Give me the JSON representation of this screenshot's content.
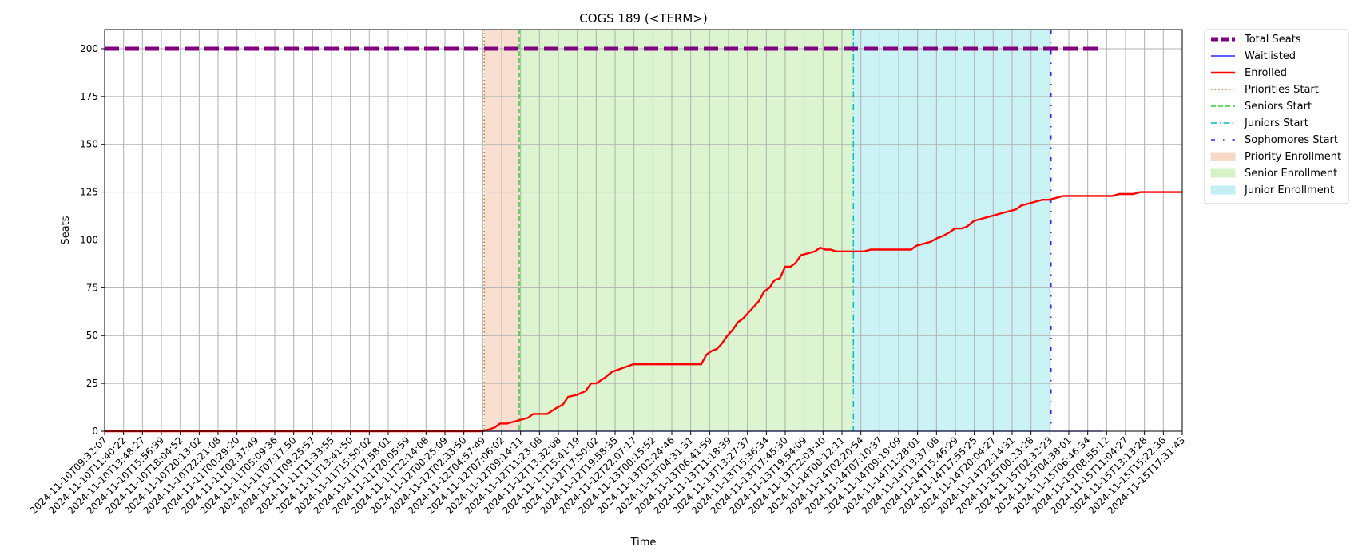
{
  "chart_data": {
    "type": "line",
    "title": "COGS 189 (<TERM>)",
    "xlabel": "Time",
    "ylabel": "Seats",
    "ylim": [
      0,
      210
    ],
    "yticks": [
      0,
      25,
      50,
      75,
      100,
      125,
      150,
      175,
      200
    ],
    "grid": true,
    "legend_position": "outside-top-right",
    "x_ticks": [
      "2024-11-10T09:32:07",
      "2024-11-10T11:40:22",
      "2024-11-10T13:48:27",
      "2024-11-10T15:56:39",
      "2024-11-10T18:04:52",
      "2024-11-10T20:13:02",
      "2024-11-10T22:21:08",
      "2024-11-11T00:29:20",
      "2024-11-11T02:37:49",
      "2024-11-11T05:09:36",
      "2024-11-11T07:17:50",
      "2024-11-11T09:25:57",
      "2024-11-11T11:33:55",
      "2024-11-11T13:41:50",
      "2024-11-11T15:50:02",
      "2024-11-11T17:58:01",
      "2024-11-11T20:05:59",
      "2024-11-11T22:14:08",
      "2024-11-12T00:25:09",
      "2024-11-12T02:33:50",
      "2024-11-12T04:57:49",
      "2024-11-12T07:06:02",
      "2024-11-12T09:14:11",
      "2024-11-12T11:23:08",
      "2024-11-12T13:32:08",
      "2024-11-12T15:41:19",
      "2024-11-12T17:50:02",
      "2024-11-12T19:58:35",
      "2024-11-12T22:07:17",
      "2024-11-13T00:15:52",
      "2024-11-13T02:24:46",
      "2024-11-13T04:31:31",
      "2024-11-13T06:41:59",
      "2024-11-13T11:18:39",
      "2024-11-13T13:27:37",
      "2024-11-13T15:36:34",
      "2024-11-13T17:45:30",
      "2024-11-13T19:54:09",
      "2024-11-13T22:03:40",
      "2024-11-14T00:12:11",
      "2024-11-14T02:20:54",
      "2024-11-14T07:10:37",
      "2024-11-14T09:19:09",
      "2024-11-14T11:28:01",
      "2024-11-14T13:37:08",
      "2024-11-14T15:46:29",
      "2024-11-14T17:55:25",
      "2024-11-14T20:04:27",
      "2024-11-14T22:14:31",
      "2024-11-15T00:23:28",
      "2024-11-15T02:32:23",
      "2024-11-15T04:38:01",
      "2024-11-15T06:46:34",
      "2024-11-15T08:55:12",
      "2024-11-15T11:04:27",
      "2024-11-15T13:13:28",
      "2024-11-15T15:22:36",
      "2024-11-15T17:31:43"
    ],
    "series": [
      {
        "name": "Total Seats",
        "color": "#800080",
        "style": "dashed-thick",
        "points": [
          [
            0,
            200
          ],
          [
            57,
            200
          ]
        ]
      },
      {
        "name": "Waitlisted",
        "color": "#0000ff",
        "style": "solid-thin",
        "points": [
          [
            0,
            0
          ],
          [
            57,
            0
          ]
        ]
      },
      {
        "name": "Enrolled",
        "color": "#ff0000",
        "style": "solid",
        "points": [
          [
            0,
            0
          ],
          [
            21.6,
            0
          ],
          [
            22,
            1
          ],
          [
            22.3,
            2
          ],
          [
            22.6,
            4
          ],
          [
            23,
            4
          ],
          [
            23.4,
            5
          ],
          [
            23.8,
            6
          ],
          [
            24.2,
            7
          ],
          [
            24.5,
            9
          ],
          [
            25.3,
            9
          ],
          [
            25.8,
            12
          ],
          [
            26.2,
            14
          ],
          [
            26.5,
            18
          ],
          [
            27,
            19
          ],
          [
            27.5,
            21
          ],
          [
            27.8,
            25
          ],
          [
            28.1,
            25
          ],
          [
            28.6,
            28
          ],
          [
            29,
            31
          ],
          [
            29.6,
            33
          ],
          [
            30.2,
            35
          ],
          [
            31,
            35
          ],
          [
            32,
            35
          ],
          [
            33,
            35
          ],
          [
            33.5,
            35
          ],
          [
            34.1,
            35
          ],
          [
            34.4,
            40
          ],
          [
            34.7,
            42
          ],
          [
            35,
            43
          ],
          [
            35.3,
            46
          ],
          [
            35.6,
            50
          ],
          [
            35.9,
            53
          ],
          [
            36.2,
            57
          ],
          [
            36.5,
            59
          ],
          [
            36.8,
            62
          ],
          [
            37.1,
            65
          ],
          [
            37.4,
            68
          ],
          [
            37.7,
            73
          ],
          [
            38,
            75
          ],
          [
            38.3,
            79
          ],
          [
            38.6,
            80
          ],
          [
            38.9,
            86
          ],
          [
            39.2,
            86
          ],
          [
            39.5,
            88
          ],
          [
            39.8,
            92
          ],
          [
            40.2,
            93
          ],
          [
            40.6,
            94
          ],
          [
            40.9,
            96
          ],
          [
            41.2,
            95
          ],
          [
            41.5,
            95
          ],
          [
            41.8,
            94
          ],
          [
            42.2,
            94
          ],
          [
            42.6,
            94
          ],
          [
            43,
            94
          ],
          [
            43.4,
            94
          ],
          [
            43.8,
            95
          ],
          [
            44.3,
            95
          ],
          [
            45,
            95
          ],
          [
            45.6,
            95
          ],
          [
            46.1,
            95
          ],
          [
            46.4,
            97
          ],
          [
            46.8,
            98
          ],
          [
            47.2,
            99
          ],
          [
            47.6,
            101
          ],
          [
            47.9,
            102
          ],
          [
            48.3,
            104
          ],
          [
            48.6,
            106
          ],
          [
            49,
            106
          ],
          [
            49.3,
            107
          ],
          [
            49.7,
            110
          ],
          [
            50.1,
            111
          ],
          [
            50.5,
            112
          ],
          [
            50.9,
            113
          ],
          [
            51.3,
            114
          ],
          [
            51.7,
            115
          ],
          [
            52.1,
            116
          ],
          [
            52.4,
            118
          ],
          [
            52.8,
            119
          ],
          [
            53.2,
            120
          ],
          [
            53.6,
            121
          ],
          [
            54,
            121
          ],
          [
            54.4,
            122
          ],
          [
            54.8,
            123
          ],
          [
            55.2,
            123
          ],
          [
            55.6,
            123
          ],
          [
            56,
            123
          ],
          [
            56.4,
            123
          ],
          [
            56.8,
            123
          ],
          [
            57.2,
            123
          ],
          [
            57.6,
            123
          ],
          [
            58,
            124
          ],
          [
            58.4,
            124
          ],
          [
            58.8,
            124
          ],
          [
            59.2,
            125
          ],
          [
            59.6,
            125
          ],
          [
            60,
            125
          ],
          [
            60.4,
            125
          ],
          [
            60.8,
            125
          ],
          [
            61.2,
            125
          ],
          [
            61.6,
            125
          ]
        ]
      }
    ],
    "phase_lines": [
      {
        "name": "Priorities Start",
        "x": 21.7,
        "color": "#d2691e",
        "style": "dotted"
      },
      {
        "name": "Seniors Start",
        "x": 23.7,
        "color": "#32cd32",
        "style": "dashed"
      },
      {
        "name": "Juniors Start",
        "x": 42.8,
        "color": "#00bfbf",
        "style": "dashdot"
      },
      {
        "name": "Sophomores Start",
        "x": 54.1,
        "color": "#3a1aff",
        "style": "loose-dashdot"
      }
    ],
    "phase_spans": [
      {
        "name": "Priority Enrollment",
        "x0": 21.7,
        "x1": 23.7,
        "color": "#f5c9b0"
      },
      {
        "name": "Senior Enrollment",
        "x0": 23.7,
        "x1": 42.8,
        "color": "#c4efb0"
      },
      {
        "name": "Junior Enrollment",
        "x0": 42.8,
        "x1": 54.1,
        "color": "#a8e9ee"
      }
    ]
  }
}
